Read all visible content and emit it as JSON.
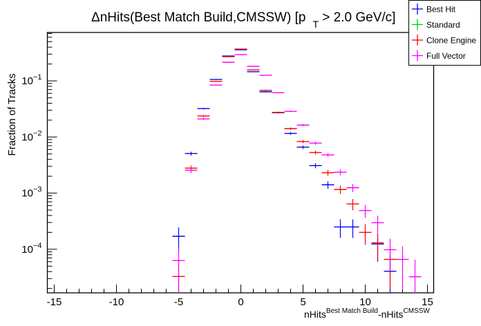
{
  "chart_data": {
    "type": "scatter",
    "title": {
      "prefix": "ΔnHits(Best Match Build,CMSSW) [p",
      "sub": "T",
      "suffix": " > 2.0 GeV/c]"
    },
    "xlabel": {
      "main1": "nHits",
      "sup1": "Best Match Build",
      "main2": "-nHits",
      "sup2": "CMSSW"
    },
    "ylabel": "Fraction of Tracks",
    "xlim": [
      -15.5,
      16
    ],
    "ylim": [
      1.67e-05,
      0.73
    ],
    "yscale": "log",
    "grid": false,
    "legend_position": "top-right",
    "x_ticks": [
      "-15",
      "-10",
      "-5",
      "0",
      "5",
      "10",
      "15"
    ],
    "y_ticks": [
      {
        "value": 0.1,
        "base": "10",
        "exp": "−1"
      },
      {
        "value": 0.01,
        "base": "10",
        "exp": "−2"
      },
      {
        "value": 0.001,
        "base": "10",
        "exp": "−3"
      },
      {
        "value": 0.0001,
        "base": "10",
        "exp": "−4"
      }
    ],
    "series": [
      {
        "name": "Best Hit",
        "color": "#0000ff",
        "x": [
          -5,
          -4,
          -3,
          -2,
          -1,
          0,
          1,
          2,
          3,
          4,
          5,
          6,
          7,
          8,
          9,
          11,
          12
        ],
        "y": [
          0.00017,
          0.00507,
          0.0321,
          0.106,
          0.278,
          0.359,
          0.146,
          0.064,
          0.0271,
          0.0116,
          0.0066,
          0.0031,
          0.00141,
          0.00025,
          0.00025,
          0.000124,
          4.06e-05
        ]
      },
      {
        "name": "Standard",
        "color": "#00cc00",
        "x": [],
        "y": []
      },
      {
        "name": "Clone Engine",
        "color": "#ff0000",
        "x": [
          -5,
          -4,
          -3,
          -2,
          -1,
          0,
          1,
          2,
          3,
          4,
          5,
          6,
          7,
          8,
          9,
          10,
          11,
          12
        ],
        "y": [
          3.27e-05,
          0.00279,
          0.0237,
          0.098,
          0.27,
          0.369,
          0.157,
          0.0678,
          0.0275,
          0.0141,
          0.0083,
          0.0053,
          0.00231,
          0.00116,
          0.00064,
          0.0002,
          0.00013,
          6.6e-05
        ]
      },
      {
        "name": "Full Vector",
        "color": "#ff00ff",
        "x": [
          -5,
          -4,
          -3,
          -2,
          -1,
          0,
          1,
          2,
          3,
          4,
          5,
          6,
          7,
          8,
          9,
          10,
          11,
          12,
          13,
          14
        ],
        "y": [
          6.3e-05,
          0.00256,
          0.021,
          0.0843,
          0.215,
          0.294,
          0.182,
          0.126,
          0.0616,
          0.0287,
          0.0163,
          0.0078,
          0.0048,
          0.00236,
          0.00125,
          0.00049,
          0.000297,
          9.8e-05,
          6.6e-05,
          3.24e-05
        ]
      }
    ]
  }
}
